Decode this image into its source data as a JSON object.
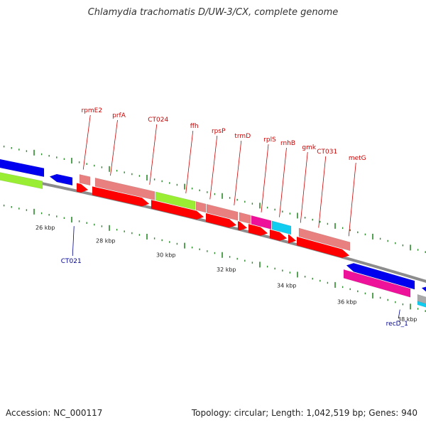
{
  "title": "Chlamydia trachomatis D/UW-3/CX, complete genome",
  "footer": {
    "accession": "Accession: NC_000117",
    "summary": "Topology: circular; Length: 1,042,519 bp; Genes: 940"
  },
  "colors": {
    "backbone": "#8c8c8c",
    "tick": "#2a8a2a",
    "gene_label_top": "#cc0000",
    "gene_label_bottom": "#00008b",
    "red": "#ff0000",
    "salmon": "#e88080",
    "lime": "#99ee33",
    "blue": "#0000ee",
    "magenta": "#ee1199",
    "cyan": "#11ccee"
  },
  "scale_labels": [
    {
      "text": "26 kbp",
      "kbp": 26
    },
    {
      "text": "28 kbp",
      "kbp": 28
    },
    {
      "text": "30 kbp",
      "kbp": 30
    },
    {
      "text": "32 kbp",
      "kbp": 32
    },
    {
      "text": "34 kbp",
      "kbp": 34
    },
    {
      "text": "36 kbp",
      "kbp": 36
    },
    {
      "text": "38 kbp",
      "kbp": 38
    }
  ],
  "top_labels": [
    {
      "text": "rpmE2",
      "kbp": 27.4
    },
    {
      "text": "prfA",
      "kbp": 28.3
    },
    {
      "text": "CT024",
      "kbp": 29.6
    },
    {
      "text": "ffh",
      "kbp": 30.8
    },
    {
      "text": "rpsP",
      "kbp": 31.6
    },
    {
      "text": "trmD",
      "kbp": 32.4
    },
    {
      "text": "rplS",
      "kbp": 33.3
    },
    {
      "text": "rnhB",
      "kbp": 33.9
    },
    {
      "text": "gmk",
      "kbp": 34.6
    },
    {
      "text": "CT031",
      "kbp": 35.2
    },
    {
      "text": "metG",
      "kbp": 36.2
    }
  ],
  "bottom_labels": [
    {
      "text": "CT021",
      "kbp": 27.0
    },
    {
      "text": "recD_1",
      "kbp": 37.8
    }
  ]
}
